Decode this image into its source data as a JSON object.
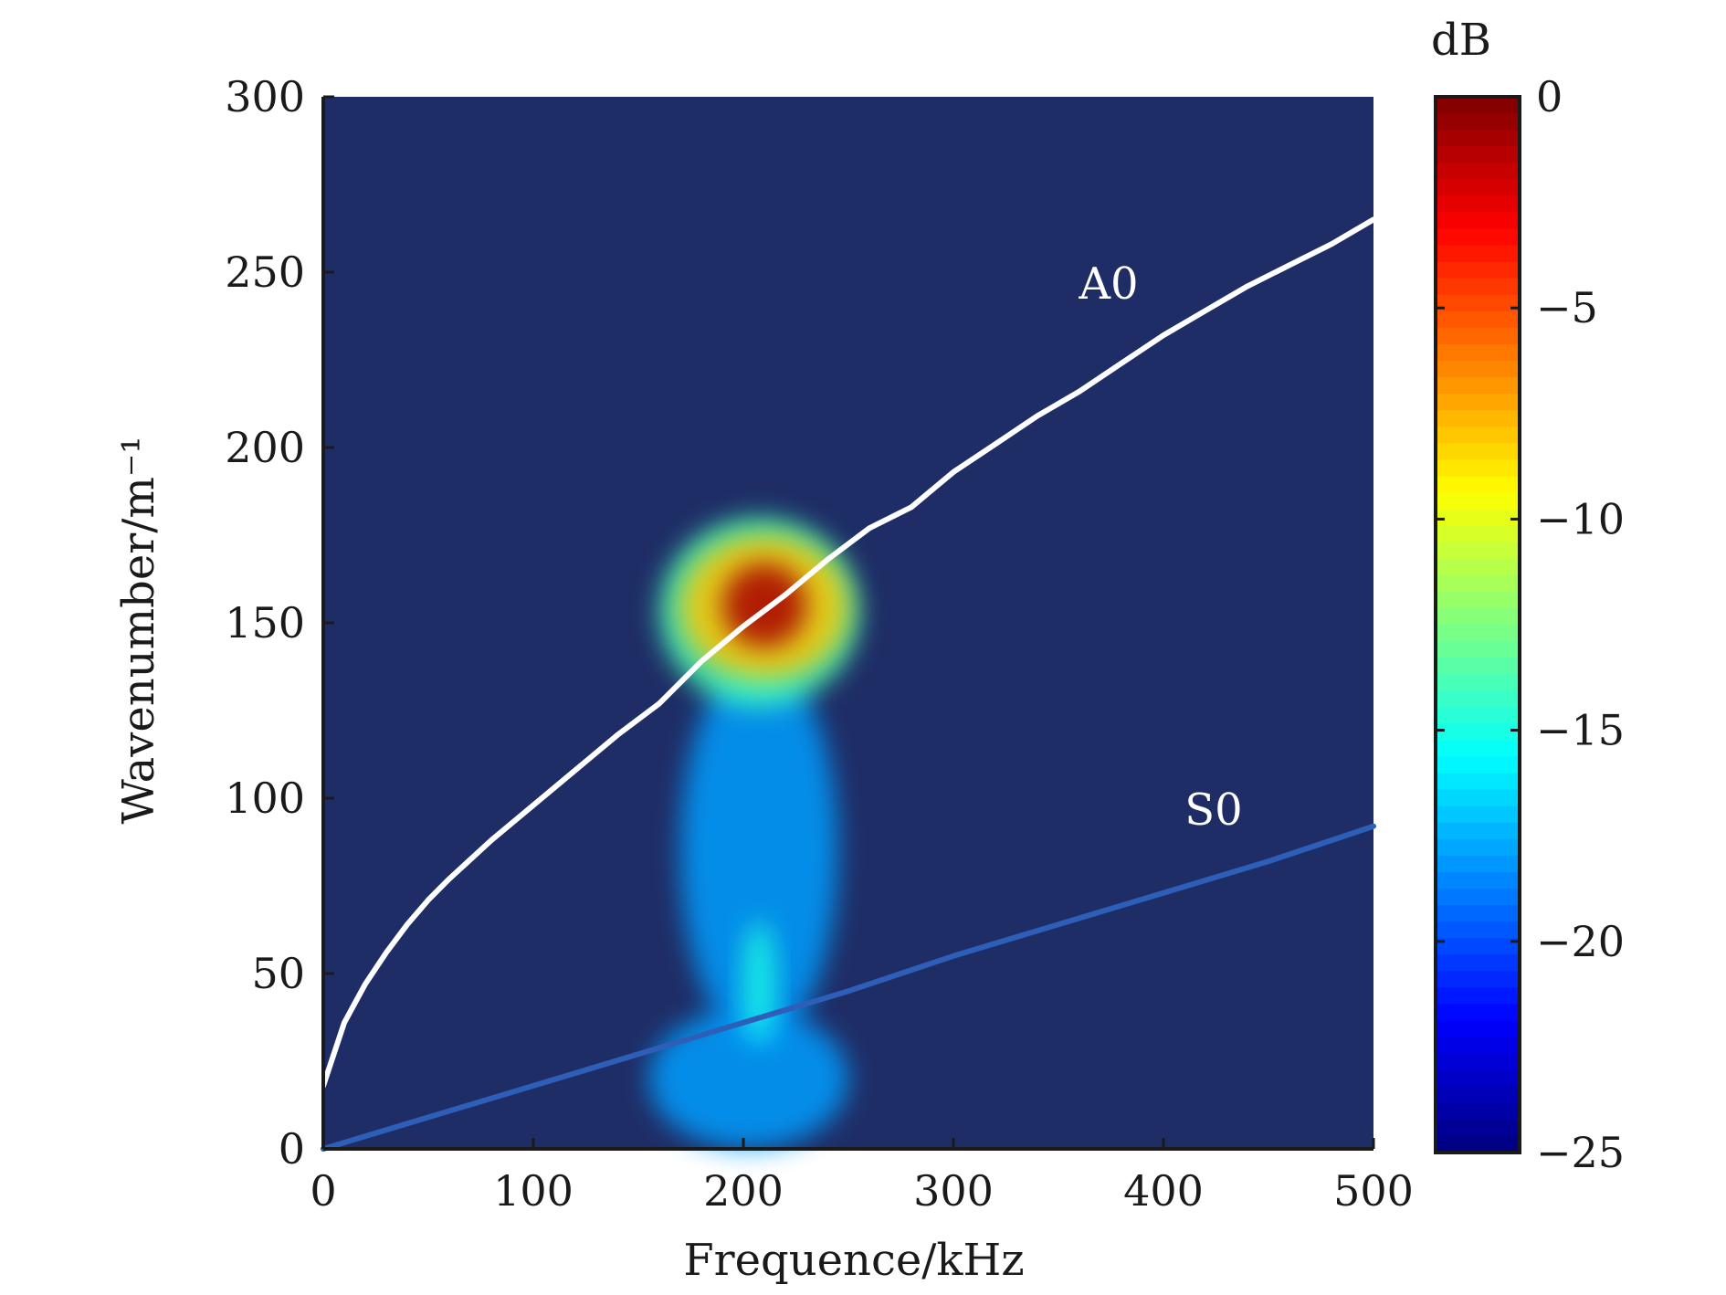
{
  "chart_data": {
    "type": "heatmap",
    "xlabel": "Frequence/kHz",
    "ylabel": "Wavenumber/m⁻¹",
    "xlim": [
      0,
      500
    ],
    "ylim": [
      0,
      300
    ],
    "x_ticks": [
      "0",
      "100",
      "200",
      "300",
      "400",
      "500"
    ],
    "y_ticks": [
      "0",
      "50",
      "100",
      "150",
      "200",
      "250",
      "300"
    ],
    "grid": false,
    "background_color": "#1f2d66",
    "colorbar": {
      "title": "dB",
      "range": [
        -25,
        0
      ],
      "ticks": [
        "0",
        "−5",
        "−10",
        "−15",
        "−20",
        "−25"
      ],
      "tick_values": [
        0,
        -5,
        -10,
        -15,
        -20,
        -25
      ],
      "colormap": "jet"
    },
    "series": [
      {
        "name": "A0",
        "color": "#ffffff",
        "x": [
          0,
          10,
          20,
          30,
          40,
          50,
          60,
          80,
          100,
          120,
          140,
          160,
          180,
          200,
          220,
          240,
          260,
          280,
          300,
          320,
          340,
          360,
          380,
          400,
          420,
          440,
          460,
          480,
          500
        ],
        "y": [
          18,
          36,
          47,
          56,
          64,
          71,
          77,
          88,
          98,
          108,
          118,
          127,
          139,
          149,
          158,
          168,
          177,
          183,
          193,
          201,
          209,
          216,
          224,
          232,
          239,
          246,
          252,
          258,
          265
        ]
      },
      {
        "name": "S0",
        "color": "#2e5fb8",
        "x": [
          0,
          50,
          100,
          150,
          200,
          250,
          300,
          350,
          400,
          450,
          480,
          500
        ],
        "y": [
          0,
          9,
          18,
          27,
          36,
          45,
          55,
          64,
          73,
          82,
          88,
          92
        ]
      }
    ],
    "energy_regions": [
      {
        "x": [
          190,
          230
        ],
        "y": [
          143,
          167
        ],
        "db": -1
      },
      {
        "x": [
          170,
          250
        ],
        "y": [
          134,
          175
        ],
        "db": -8
      },
      {
        "x": [
          160,
          255
        ],
        "y": [
          126,
          180
        ],
        "db": -14
      },
      {
        "x": [
          170,
          245
        ],
        "y": [
          30,
          140
        ],
        "db": -18
      },
      {
        "x": [
          200,
          215
        ],
        "y": [
          30,
          65
        ],
        "db": -15
      },
      {
        "x": [
          155,
          250
        ],
        "y": [
          0,
          40
        ],
        "db": -18
      }
    ]
  }
}
